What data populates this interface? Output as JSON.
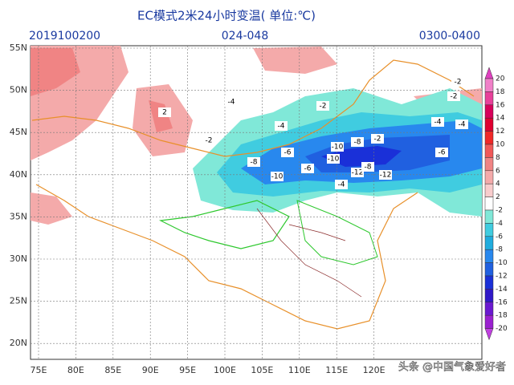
{
  "header": {
    "title": "EC模式2米24小时变温( 单位:℃)",
    "date": "2019100200",
    "lead": "024-048",
    "window": "0300-0400"
  },
  "lat_labels": [
    "55N",
    "50N",
    "45N",
    "40N",
    "35N",
    "30N",
    "25N",
    "20N"
  ],
  "lon_labels": [
    "75E",
    "80E",
    "85E",
    "90E",
    "95E",
    "100E",
    "105E",
    "110E",
    "115E",
    "120E"
  ],
  "colorbar": {
    "levels": [
      20,
      18,
      16,
      14,
      12,
      10,
      8,
      6,
      4,
      2,
      -2,
      -4,
      -6,
      -8,
      -10,
      -12,
      -14,
      -16,
      -18,
      -20
    ],
    "colors": [
      "#e040c0",
      "#f080c8",
      "#e8409a",
      "#d8005a",
      "#e00030",
      "#f02828",
      "#f05858",
      "#f08484",
      "#f4aaaa",
      "#f8cccc",
      "#ffffff",
      "#80e8d8",
      "#40cce0",
      "#20acde",
      "#2888ee",
      "#2060e0",
      "#1a30d8",
      "#3018c8",
      "#6a18d0",
      "#9a20d0",
      "#c040e0"
    ]
  },
  "contour_labels": [
    "-2",
    "-4",
    "-2",
    "-4",
    "-6",
    "-8",
    "-10",
    "-8",
    "-10",
    "-6",
    "-12",
    "-10",
    "-12",
    "-8",
    "-4",
    "-6",
    "-2",
    "-4",
    "-2",
    "2",
    "-2",
    "-4"
  ],
  "watermark": "头条 @中国气象爱好者"
}
